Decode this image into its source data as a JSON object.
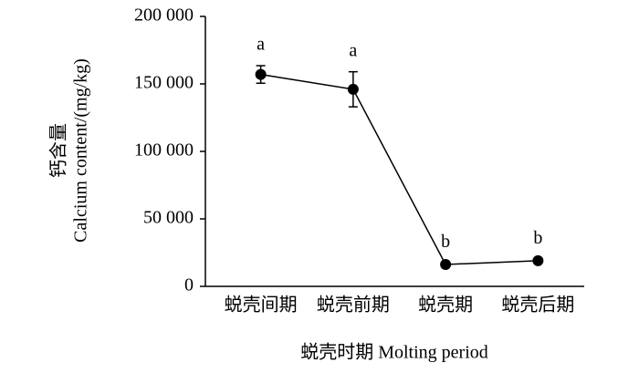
{
  "chart_data": {
    "type": "line",
    "y_label_lines": [
      "钙含量",
      "Calcium content/(mg/kg)"
    ],
    "x_label": "蜕壳时期 Molting period",
    "categories": [
      "蜕壳间期",
      "蜕壳前期",
      "蜕壳期",
      "蜕壳后期"
    ],
    "series": [
      {
        "color": "#000000",
        "values": [
          157000,
          146000,
          16200,
          19000
        ],
        "errors": [
          6500,
          13000,
          1000,
          1000
        ]
      }
    ],
    "annotations": [
      "a",
      "a",
      "b",
      "b"
    ],
    "ylim": [
      0,
      200000
    ],
    "yticks": [
      0,
      {
        "value": 50000,
        "label": "50 000"
      },
      {
        "value": 100000,
        "label": "100 000"
      },
      {
        "value": 150000,
        "label": "150 000"
      },
      {
        "value": 200000,
        "label": "200 000"
      }
    ],
    "grid": false
  }
}
